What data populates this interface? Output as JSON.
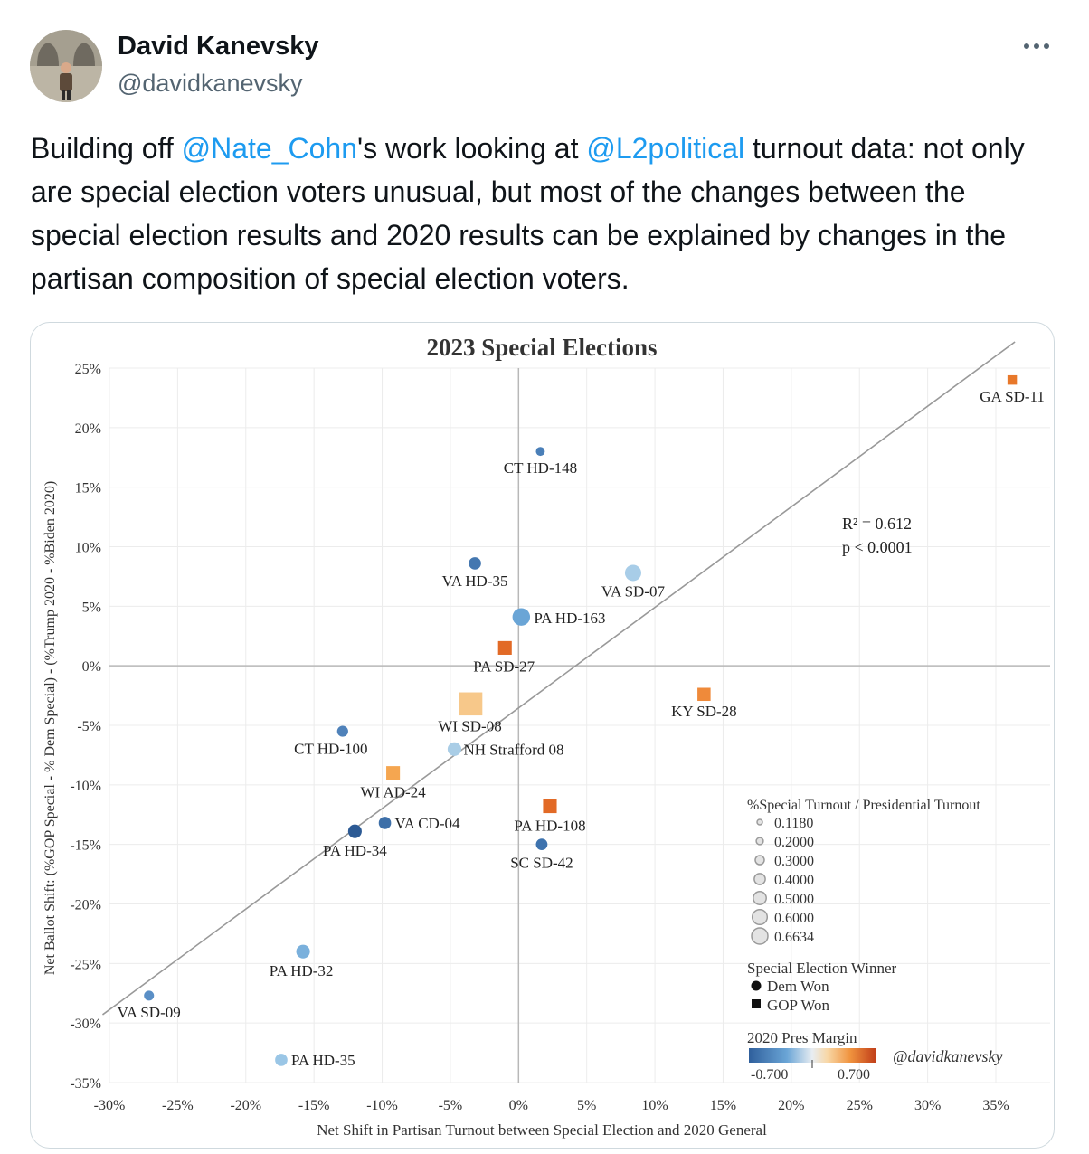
{
  "tweet": {
    "author_name": "David Kanevsky",
    "author_handle": "@davidkanevsky",
    "more_label": "···",
    "text_parts": [
      "Building off ",
      "@Nate_Cohn",
      "'s  work looking at ",
      "@L2political",
      " turnout data: not only are special election voters unusual, but most of the changes between the special election results and 2020 results can be explained by changes in the partisan composition of special election voters."
    ]
  },
  "chart_data": {
    "type": "scatter",
    "title": "2023 Special Elections",
    "xlabel": "Net Shift in Partisan Turnout between Special Election and 2020 General",
    "ylabel": "Net Ballot Shift: (%GOP Special - % Dem Special) - (%Trump 2020 - %Biden 2020)",
    "xlim": [
      -30,
      35
    ],
    "ylim": [
      -35,
      25
    ],
    "x_ticks": [
      -30,
      -25,
      -20,
      -15,
      -10,
      -5,
      0,
      5,
      10,
      15,
      20,
      25,
      30,
      35
    ],
    "y_ticks": [
      25,
      20,
      15,
      10,
      5,
      0,
      -5,
      -10,
      -15,
      -20,
      -25,
      -30,
      -35
    ],
    "x_tick_labels": [
      "-30%",
      "-25%",
      "-20%",
      "-15%",
      "-10%",
      "-5%",
      "0%",
      "5%",
      "10%",
      "15%",
      "20%",
      "25%",
      "30%",
      "35%"
    ],
    "y_tick_labels": [
      "25%",
      "20%",
      "15%",
      "10%",
      "5%",
      "0%",
      "-5%",
      "-10%",
      "-15%",
      "-20%",
      "-25%",
      "-30%",
      "-35%"
    ],
    "regression_line": {
      "x": [
        -30.5,
        36.4
      ],
      "y": [
        -29.3,
        27.2
      ]
    },
    "stats": {
      "r2": "R² = 0.612",
      "p": "p < 0.0001"
    },
    "watermark": "@davidkanevsky",
    "points": [
      {
        "label": "GA SD-11",
        "x": 36.2,
        "y": 24.0,
        "turnout": 0.14,
        "winner": "gop",
        "color": "#e8782a"
      },
      {
        "label": "CT HD-148",
        "x": 1.6,
        "y": 18.0,
        "turnout": 0.12,
        "winner": "dem",
        "color": "#4a7fb8"
      },
      {
        "label": "VA HD-35",
        "x": -3.2,
        "y": 8.6,
        "turnout": 0.25,
        "winner": "dem",
        "color": "#4477b0"
      },
      {
        "label": "VA SD-07",
        "x": 8.4,
        "y": 7.8,
        "turnout": 0.4,
        "winner": "dem",
        "color": "#a8cde8"
      },
      {
        "label": "PA HD-163",
        "x": 0.2,
        "y": 4.1,
        "turnout": 0.45,
        "winner": "dem",
        "color": "#6aa5d6"
      },
      {
        "label": "PA SD-27",
        "x": -1.0,
        "y": 1.5,
        "turnout": 0.3,
        "winner": "gop",
        "color": "#e26a26"
      },
      {
        "label": "KY SD-28",
        "x": 13.6,
        "y": -2.4,
        "turnout": 0.28,
        "winner": "gop",
        "color": "#ef8a3a"
      },
      {
        "label": "WI SD-08",
        "x": -3.5,
        "y": -3.2,
        "turnout": 0.66,
        "winner": "gop",
        "color": "#f7c88a"
      },
      {
        "label": "CT HD-100",
        "x": -12.9,
        "y": -5.5,
        "turnout": 0.2,
        "winner": "dem",
        "color": "#4f82ba"
      },
      {
        "label": "NH Strafford 08",
        "x": -4.7,
        "y": -7.0,
        "turnout": 0.3,
        "winner": "dem",
        "color": "#a9cde6"
      },
      {
        "label": "WI AD-24",
        "x": -9.2,
        "y": -9.0,
        "turnout": 0.3,
        "winner": "gop",
        "color": "#f5a650"
      },
      {
        "label": "VA CD-04",
        "x": -9.8,
        "y": -13.2,
        "turnout": 0.25,
        "winner": "dem",
        "color": "#3d6fa8"
      },
      {
        "label": "PA HD-108",
        "x": 2.3,
        "y": -11.8,
        "turnout": 0.3,
        "winner": "gop",
        "color": "#e26a26"
      },
      {
        "label": "PA HD-34",
        "x": -12.0,
        "y": -13.9,
        "turnout": 0.3,
        "winner": "dem",
        "color": "#2c5a94"
      },
      {
        "label": "SC SD-42",
        "x": 1.7,
        "y": -15.0,
        "turnout": 0.22,
        "winner": "dem",
        "color": "#3e73ae"
      },
      {
        "label": "PA HD-32",
        "x": -15.8,
        "y": -24.0,
        "turnout": 0.3,
        "winner": "dem",
        "color": "#7ab0dc"
      },
      {
        "label": "VA SD-09",
        "x": -27.1,
        "y": -27.7,
        "turnout": 0.16,
        "winner": "dem",
        "color": "#5a8fc6"
      },
      {
        "label": "PA HD-35",
        "x": -17.4,
        "y": -33.1,
        "turnout": 0.25,
        "winner": "dem",
        "color": "#9ac6e6"
      }
    ],
    "legend": {
      "size_title": "%Special Turnout / Presidential Turnout",
      "size_items": [
        "0.1180",
        "0.2000",
        "0.3000",
        "0.4000",
        "0.5000",
        "0.6000",
        "0.6634"
      ],
      "size_values": [
        0.118,
        0.2,
        0.3,
        0.4,
        0.5,
        0.6,
        0.6634
      ],
      "winner_title": "Special Election Winner",
      "winner_items": [
        "Dem Won",
        "GOP Won"
      ],
      "margin_title": "2020 Pres Margin",
      "margin_min": "-0.700",
      "margin_max": "0.700",
      "margin_colors": [
        "#2f5f9c",
        "#6aa5d6",
        "#c7dff0",
        "#f8d7a6",
        "#f0933e",
        "#c2401a"
      ]
    }
  }
}
